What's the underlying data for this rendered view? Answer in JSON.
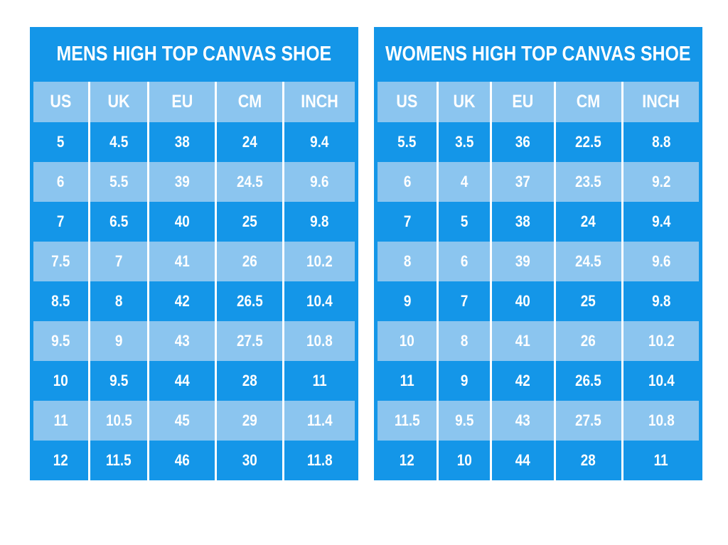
{
  "colors": {
    "dark_blue": "#1496E8",
    "light_blue": "#8BC5EF",
    "text": "#FFFFFF",
    "background": "#FFFFFF"
  },
  "chart_data": [
    {
      "type": "table",
      "id": "mens",
      "title": "MENS HIGH TOP CANVAS SHOE",
      "columns": [
        "US",
        "UK",
        "EU",
        "CM",
        "INCH"
      ],
      "rows": [
        [
          "5",
          "4.5",
          "38",
          "24",
          "9.4"
        ],
        [
          "6",
          "5.5",
          "39",
          "24.5",
          "9.6"
        ],
        [
          "7",
          "6.5",
          "40",
          "25",
          "9.8"
        ],
        [
          "7.5",
          "7",
          "41",
          "26",
          "10.2"
        ],
        [
          "8.5",
          "8",
          "42",
          "26.5",
          "10.4"
        ],
        [
          "9.5",
          "9",
          "43",
          "27.5",
          "10.8"
        ],
        [
          "10",
          "9.5",
          "44",
          "28",
          "11"
        ],
        [
          "11",
          "10.5",
          "45",
          "29",
          "11.4"
        ],
        [
          "12",
          "11.5",
          "46",
          "30",
          "11.8"
        ]
      ]
    },
    {
      "type": "table",
      "id": "womens",
      "title": "WOMENS HIGH TOP CANVAS SHOE",
      "columns": [
        "US",
        "UK",
        "EU",
        "CM",
        "INCH"
      ],
      "rows": [
        [
          "5.5",
          "3.5",
          "36",
          "22.5",
          "8.8"
        ],
        [
          "6",
          "4",
          "37",
          "23.5",
          "9.2"
        ],
        [
          "7",
          "5",
          "38",
          "24",
          "9.4"
        ],
        [
          "8",
          "6",
          "39",
          "24.5",
          "9.6"
        ],
        [
          "9",
          "7",
          "40",
          "25",
          "9.8"
        ],
        [
          "10",
          "8",
          "41",
          "26",
          "10.2"
        ],
        [
          "11",
          "9",
          "42",
          "26.5",
          "10.4"
        ],
        [
          "11.5",
          "9.5",
          "43",
          "27.5",
          "10.8"
        ],
        [
          "12",
          "10",
          "44",
          "28",
          "11"
        ]
      ]
    }
  ]
}
